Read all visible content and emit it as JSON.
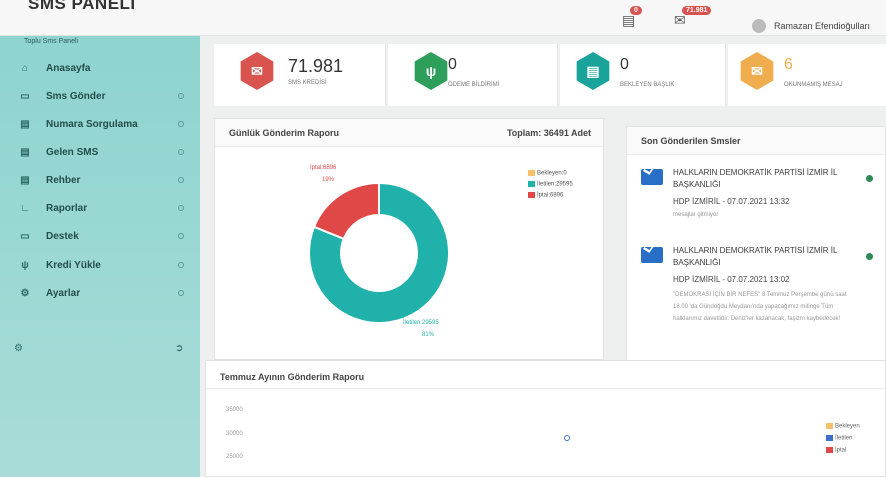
{
  "header": {
    "brand": "SMS PANELİ",
    "notif_badge": "0",
    "msg_badge": "71.981",
    "user_name": "Ramazan Efendioğulları"
  },
  "sidebar": {
    "title": "Toplu Sms Paneli",
    "items": [
      {
        "label": "Anasayfa",
        "icon": "home-icon"
      },
      {
        "label": "Sms Gönder",
        "icon": "send-icon"
      },
      {
        "label": "Numara Sorgulama",
        "icon": "search-number-icon"
      },
      {
        "label": "Gelen SMS",
        "icon": "inbox-icon"
      },
      {
        "label": "Rehber",
        "icon": "book-icon"
      },
      {
        "label": "Raporlar",
        "icon": "chart-icon"
      },
      {
        "label": "Destek",
        "icon": "support-icon"
      },
      {
        "label": "Kredi Yükle",
        "icon": "cart-icon"
      },
      {
        "label": "Ayarlar",
        "icon": "gear-icon"
      }
    ]
  },
  "stats": [
    {
      "value": "71.981",
      "label": "SMS KREDİSİ",
      "color": "#d9534f",
      "icon": "envelope-icon"
    },
    {
      "value": "0",
      "label": "ÖDEME BİLDİRİMİ",
      "color": "#2e9e5b",
      "icon": "cart-icon"
    },
    {
      "value": "0",
      "label": "BEKLEYEN BAŞLIK",
      "color": "#1aa39a",
      "icon": "clipboard-icon"
    },
    {
      "value": "6",
      "label": "OKUNMAMIŞ MESAJ",
      "color": "#f0ad4e",
      "icon": "envelope-icon"
    }
  ],
  "daily_report": {
    "title": "Günlük Gönderim Raporu",
    "total": "Toplam: 36491 Adet",
    "label_iptal": "İptal:6896",
    "pct_iptal": "19%",
    "label_iletilen": "İletilen:29595",
    "pct_iletilen": "81%",
    "legend": [
      {
        "label": "Bekleyen:0",
        "color": "#f5c26b"
      },
      {
        "label": "İletilen:29595",
        "color": "#20b2aa"
      },
      {
        "label": "İptal:6896",
        "color": "#e04848"
      }
    ]
  },
  "chart_data": {
    "type": "pie",
    "categories": [
      "Bekleyen",
      "İletilen",
      "İptal"
    ],
    "values": [
      0,
      29595,
      6896
    ],
    "colors": [
      "#f5c26b",
      "#20b2aa",
      "#e04848"
    ],
    "title": "Günlük Gönderim Raporu",
    "total_label": "Toplam: 36491 Adet",
    "legend_position": "top-right"
  },
  "recent": {
    "title": "Son Gönderilen Smsler",
    "messages": [
      {
        "title": "HALKLARIN DEMOKRATİK PARTİSİ İZMİR İL BAŞKANLIĞI",
        "sub": "HDP İZMİRİL - 07.07.2021 13:32",
        "text": "mesajlar gitmiyor"
      },
      {
        "title": "HALKLARIN DEMOKRATİK PARTİSİ İZMİR İL BAŞKANLIĞI",
        "sub": "HDP İZMİRİL - 07.07.2021 13:02",
        "text": "\"DEMOKRASİ İÇİN BİR NEFES\" 8 Temmuz Perşembe günü saat 18.00 'da Gündoğdu Meydanı'nda yapacağımız mitinge Tüm halklarımız davetlidir. Deniz'ler kazanacak, faşizm kaybedecek!"
      }
    ]
  },
  "monthly_report": {
    "title": "Temmuz Ayının Gönderim Raporu",
    "yticks": [
      "35000",
      "30000",
      "25000"
    ],
    "legend": [
      {
        "label": "Bekleyen",
        "color": "#f5c26b"
      },
      {
        "label": "İletilen",
        "color": "#3b6fc9"
      },
      {
        "label": "İptal",
        "color": "#e04848"
      }
    ]
  }
}
